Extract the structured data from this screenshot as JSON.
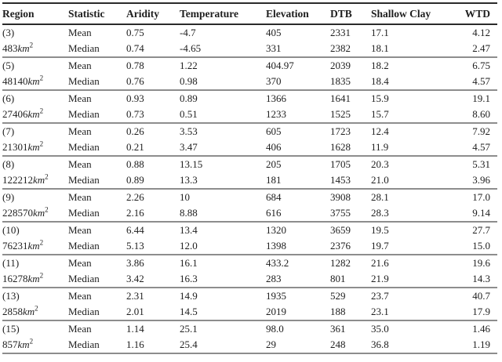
{
  "table": {
    "columns": {
      "region": "Region",
      "statistic": "Statistic",
      "aridity": "Aridity",
      "temperature": "Temperature",
      "elevation": "Elevation",
      "dtb": "DTB",
      "shallow_clay": "Shallow Clay",
      "wtd": "WTD"
    },
    "area_unit": "km",
    "area_exponent": "2",
    "groups": [
      {
        "region": "(3)",
        "area": "483",
        "rows": [
          {
            "statistic": "Mean",
            "values": [
              "0.75",
              "-4.7",
              "405",
              "2331",
              "17.1",
              "4.12"
            ]
          },
          {
            "statistic": "Median",
            "values": [
              "0.74",
              "-4.65",
              "331",
              "2382",
              "18.1",
              "2.47"
            ]
          }
        ]
      },
      {
        "region": "(5)",
        "area": "48140",
        "rows": [
          {
            "statistic": "Mean",
            "values": [
              "0.78",
              "1.22",
              "404.97",
              "2039",
              "18.2",
              "6.75"
            ]
          },
          {
            "statistic": "Median",
            "values": [
              "0.76",
              "0.98",
              "370",
              "1835",
              "18.4",
              "4.57"
            ]
          }
        ]
      },
      {
        "region": "(6)",
        "area": "27406",
        "rows": [
          {
            "statistic": "Mean",
            "values": [
              "0.93",
              "0.89",
              "1366",
              "1641",
              "15.9",
              "19.1"
            ]
          },
          {
            "statistic": "Median",
            "values": [
              "0.73",
              "0.51",
              "1233",
              "1525",
              "15.7",
              "8.60"
            ]
          }
        ]
      },
      {
        "region": "(7)",
        "area": "21301",
        "rows": [
          {
            "statistic": "Mean",
            "values": [
              "0.26",
              "3.53",
              "605",
              "1723",
              "12.4",
              "7.92"
            ]
          },
          {
            "statistic": "Median",
            "values": [
              "0.21",
              "3.47",
              "406",
              "1628",
              "11.9",
              "4.57"
            ]
          }
        ]
      },
      {
        "region": "(8)",
        "area": "122212",
        "rows": [
          {
            "statistic": "Mean",
            "values": [
              "0.88",
              "13.15",
              "205",
              "1705",
              "20.3",
              "5.31"
            ]
          },
          {
            "statistic": "Median",
            "values": [
              "0.89",
              "13.3",
              "181",
              "1453",
              "21.0",
              "3.96"
            ]
          }
        ]
      },
      {
        "region": "(9)",
        "area": "228570",
        "rows": [
          {
            "statistic": "Mean",
            "values": [
              "2.26",
              "10",
              "684",
              "3908",
              "28.1",
              "17.0"
            ]
          },
          {
            "statistic": "Median",
            "values": [
              "2.16",
              "8.88",
              "616",
              "3755",
              "28.3",
              "9.14"
            ]
          }
        ]
      },
      {
        "region": "(10)",
        "area": "76231",
        "rows": [
          {
            "statistic": "Mean",
            "values": [
              "6.44",
              "13.4",
              "1320",
              "3659",
              "19.5",
              "27.7"
            ]
          },
          {
            "statistic": "Median",
            "values": [
              "5.13",
              "12.0",
              "1398",
              "2376",
              "19.7",
              "15.0"
            ]
          }
        ]
      },
      {
        "region": "(11)",
        "area": "16278",
        "rows": [
          {
            "statistic": "Mean",
            "values": [
              "3.86",
              "16.1",
              "433.2",
              "1282",
              "21.6",
              "19.6"
            ]
          },
          {
            "statistic": "Median",
            "values": [
              "3.42",
              "16.3",
              "283",
              "801",
              "21.9",
              "14.3"
            ]
          }
        ]
      },
      {
        "region": "(13)",
        "area": "2858",
        "rows": [
          {
            "statistic": "Mean",
            "values": [
              "2.31",
              "14.9",
              "1935",
              "529",
              "23.7",
              "40.7"
            ]
          },
          {
            "statistic": "Median",
            "values": [
              "2.01",
              "14.5",
              "2019",
              "188",
              "23.1",
              "17.9"
            ]
          }
        ]
      },
      {
        "region": "(15)",
        "area": "857",
        "rows": [
          {
            "statistic": "Mean",
            "values": [
              "1.14",
              "25.1",
              "98.0",
              "361",
              "35.0",
              "1.46"
            ]
          },
          {
            "statistic": "Median",
            "values": [
              "1.16",
              "25.4",
              "29",
              "248",
              "36.8",
              "1.19"
            ]
          }
        ]
      }
    ]
  }
}
